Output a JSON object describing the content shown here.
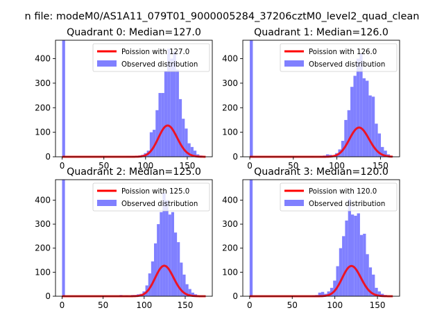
{
  "suptitle": "n file: modeM0/AS1A11_079T01_9000005284_37206cztM0_level2_quad_clean",
  "chart_data": [
    {
      "type": "bar",
      "title": "Quadrant 0: Median=127.0",
      "xlim": [
        -8,
        180
      ],
      "ylim": [
        0,
        475
      ],
      "xticks": [
        0,
        50,
        100,
        150
      ],
      "yticks": [
        0,
        100,
        200,
        300,
        400
      ],
      "legend": [
        "Poission with 127.0",
        "Observed distribution"
      ],
      "legend_position": "top-right",
      "colors": {
        "fit": "#ff0000",
        "observed": "#8080ff"
      },
      "poisson_mean": 127.0,
      "bin_width": 3.5,
      "histogram": [
        {
          "x": 0,
          "y": 475
        },
        {
          "x": 77,
          "y": 2
        },
        {
          "x": 80.5,
          "y": 2
        },
        {
          "x": 84,
          "y": 3
        },
        {
          "x": 87.5,
          "y": 3
        },
        {
          "x": 91,
          "y": 5
        },
        {
          "x": 94.5,
          "y": 8
        },
        {
          "x": 98,
          "y": 15
        },
        {
          "x": 101.5,
          "y": 25
        },
        {
          "x": 105,
          "y": 100
        },
        {
          "x": 108.5,
          "y": 110
        },
        {
          "x": 112,
          "y": 190
        },
        {
          "x": 115.5,
          "y": 260
        },
        {
          "x": 119,
          "y": 260
        },
        {
          "x": 122.5,
          "y": 350
        },
        {
          "x": 126,
          "y": 440
        },
        {
          "x": 129.5,
          "y": 400
        },
        {
          "x": 133,
          "y": 430
        },
        {
          "x": 136.5,
          "y": 355
        },
        {
          "x": 140,
          "y": 235
        },
        {
          "x": 143.5,
          "y": 155
        },
        {
          "x": 147,
          "y": 115
        },
        {
          "x": 150.5,
          "y": 55
        },
        {
          "x": 154,
          "y": 40
        },
        {
          "x": 157.5,
          "y": 25
        },
        {
          "x": 161,
          "y": 10
        },
        {
          "x": 164.5,
          "y": 5
        },
        {
          "x": 168,
          "y": 2
        }
      ]
    },
    {
      "type": "bar",
      "title": "Quadrant 1: Median=126.0",
      "xlim": [
        -8,
        172
      ],
      "ylim": [
        0,
        475
      ],
      "xticks": [
        0,
        50,
        100,
        150
      ],
      "yticks": [
        0,
        100,
        200,
        300,
        400
      ],
      "legend": [
        "Poission with 126.0",
        "Observed distribution"
      ],
      "legend_position": "top-right",
      "colors": {
        "fit": "#ff0000",
        "observed": "#8080ff"
      },
      "poisson_mean": 126.0,
      "bin_width": 3.5,
      "histogram": [
        {
          "x": 0,
          "y": 475
        },
        {
          "x": 70,
          "y": 2
        },
        {
          "x": 80.5,
          "y": 3
        },
        {
          "x": 84,
          "y": 5
        },
        {
          "x": 87.5,
          "y": 10
        },
        {
          "x": 91,
          "y": 8
        },
        {
          "x": 94.5,
          "y": 5
        },
        {
          "x": 98,
          "y": 15
        },
        {
          "x": 101.5,
          "y": 30
        },
        {
          "x": 105,
          "y": 65
        },
        {
          "x": 108.5,
          "y": 150
        },
        {
          "x": 112,
          "y": 190
        },
        {
          "x": 115.5,
          "y": 285
        },
        {
          "x": 119,
          "y": 330
        },
        {
          "x": 122.5,
          "y": 400
        },
        {
          "x": 126,
          "y": 420
        },
        {
          "x": 129.5,
          "y": 320
        },
        {
          "x": 133,
          "y": 310
        },
        {
          "x": 136.5,
          "y": 250
        },
        {
          "x": 140,
          "y": 245
        },
        {
          "x": 143.5,
          "y": 135
        },
        {
          "x": 147,
          "y": 95
        },
        {
          "x": 150.5,
          "y": 40
        },
        {
          "x": 154,
          "y": 25
        },
        {
          "x": 157.5,
          "y": 10
        },
        {
          "x": 161,
          "y": 3
        }
      ]
    },
    {
      "type": "bar",
      "title": "Quadrant 2: Median=125.0",
      "xlim": [
        -8,
        183
      ],
      "ylim": [
        0,
        485
      ],
      "xticks": [
        0,
        50,
        100,
        150
      ],
      "yticks": [
        0,
        100,
        200,
        300,
        400
      ],
      "legend": [
        "Poission with 125.0",
        "Observed distribution"
      ],
      "legend_position": "top-right",
      "colors": {
        "fit": "#ff0000",
        "observed": "#8080ff"
      },
      "poisson_mean": 125.0,
      "bin_width": 3.5,
      "histogram": [
        {
          "x": 0,
          "y": 485
        },
        {
          "x": 70,
          "y": 5
        },
        {
          "x": 77,
          "y": 3
        },
        {
          "x": 84,
          "y": 5
        },
        {
          "x": 87.5,
          "y": 5
        },
        {
          "x": 91,
          "y": 8
        },
        {
          "x": 94.5,
          "y": 10
        },
        {
          "x": 98,
          "y": 20
        },
        {
          "x": 101.5,
          "y": 45
        },
        {
          "x": 105,
          "y": 95
        },
        {
          "x": 108.5,
          "y": 145
        },
        {
          "x": 112,
          "y": 220
        },
        {
          "x": 115.5,
          "y": 300
        },
        {
          "x": 119,
          "y": 350
        },
        {
          "x": 122.5,
          "y": 430
        },
        {
          "x": 126,
          "y": 400
        },
        {
          "x": 129.5,
          "y": 340
        },
        {
          "x": 133,
          "y": 350
        },
        {
          "x": 136.5,
          "y": 265
        },
        {
          "x": 140,
          "y": 225
        },
        {
          "x": 143.5,
          "y": 140
        },
        {
          "x": 147,
          "y": 90
        },
        {
          "x": 150.5,
          "y": 50
        },
        {
          "x": 154,
          "y": 30
        },
        {
          "x": 157.5,
          "y": 15
        },
        {
          "x": 161,
          "y": 8
        },
        {
          "x": 164.5,
          "y": 3
        },
        {
          "x": 168,
          "y": 2
        }
      ]
    },
    {
      "type": "bar",
      "title": "Quadrant 3: Median=120.0",
      "xlim": [
        -8,
        176
      ],
      "ylim": [
        0,
        485
      ],
      "xticks": [
        0,
        50,
        100,
        150
      ],
      "yticks": [
        0,
        100,
        200,
        300,
        400
      ],
      "legend": [
        "Poission with 120.0",
        "Observed distribution"
      ],
      "legend_position": "top-right",
      "colors": {
        "fit": "#ff0000",
        "observed": "#8080ff"
      },
      "poisson_mean": 120.0,
      "bin_width": 3.5,
      "histogram": [
        {
          "x": 0,
          "y": 485
        },
        {
          "x": 73.5,
          "y": 3
        },
        {
          "x": 77,
          "y": 5
        },
        {
          "x": 80.5,
          "y": 15
        },
        {
          "x": 84,
          "y": 18
        },
        {
          "x": 87.5,
          "y": 10
        },
        {
          "x": 91,
          "y": 20
        },
        {
          "x": 94.5,
          "y": 35
        },
        {
          "x": 98,
          "y": 65
        },
        {
          "x": 101.5,
          "y": 125
        },
        {
          "x": 105,
          "y": 200
        },
        {
          "x": 108.5,
          "y": 250
        },
        {
          "x": 112,
          "y": 315
        },
        {
          "x": 115.5,
          "y": 405
        },
        {
          "x": 119,
          "y": 340
        },
        {
          "x": 122.5,
          "y": 335
        },
        {
          "x": 126,
          "y": 345
        },
        {
          "x": 129.5,
          "y": 255
        },
        {
          "x": 133,
          "y": 260
        },
        {
          "x": 136.5,
          "y": 175
        },
        {
          "x": 140,
          "y": 120
        },
        {
          "x": 143.5,
          "y": 90
        },
        {
          "x": 147,
          "y": 35
        },
        {
          "x": 150.5,
          "y": 20
        },
        {
          "x": 154,
          "y": 10
        },
        {
          "x": 157.5,
          "y": 5
        },
        {
          "x": 161,
          "y": 2
        }
      ]
    }
  ]
}
